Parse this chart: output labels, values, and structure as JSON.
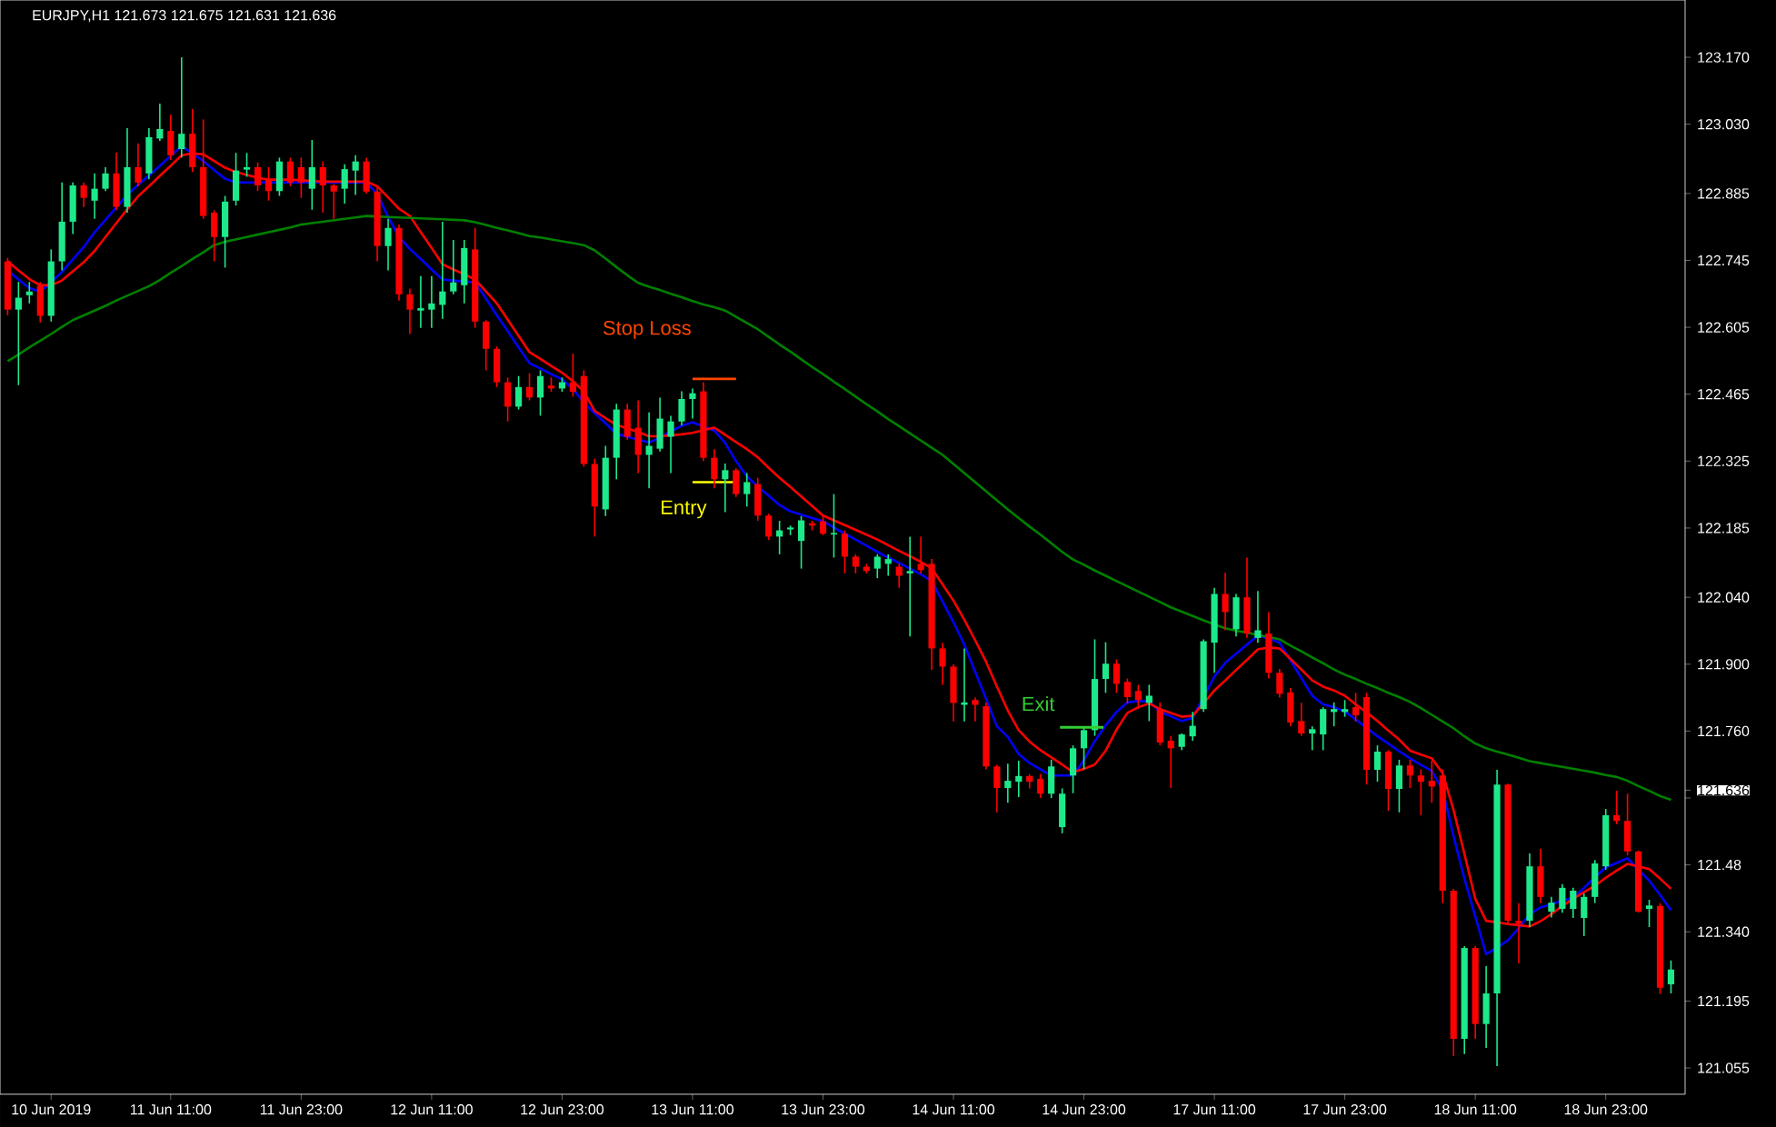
{
  "chart_data": {
    "type": "candlestick",
    "title": "EURJPY,H1  121.673 121.675 121.631 121.636",
    "categories": [
      null,
      null,
      null,
      null,
      "10 Jun 2019",
      null,
      null,
      null,
      null,
      null,
      null,
      null,
      null,
      null,
      null,
      "11 Jun 11:00",
      null,
      null,
      null,
      null,
      null,
      null,
      null,
      null,
      null,
      null,
      null,
      "11 Jun 23:00",
      null,
      null,
      null,
      null,
      null,
      null,
      null,
      null,
      null,
      null,
      null,
      "12 Jun 11:00",
      null,
      null,
      null,
      null,
      null,
      null,
      null,
      null,
      null,
      null,
      null,
      "12 Jun 23:00",
      null,
      null,
      null,
      null,
      null,
      null,
      null,
      null,
      null,
      null,
      null,
      "13 Jun 11:00",
      null,
      null,
      null,
      null,
      null,
      null,
      null,
      null,
      null,
      null,
      null,
      "13 Jun 23:00",
      null,
      null,
      null,
      null,
      null,
      null,
      null,
      null,
      null,
      null,
      null,
      "14 Jun 11:00",
      null,
      null,
      null,
      null,
      null,
      null,
      null,
      null,
      null,
      null,
      null,
      "14 Jun 23:00",
      null,
      null,
      null,
      null,
      null,
      null,
      null,
      null,
      null,
      null,
      null,
      "17 Jun 11:00",
      null,
      null,
      null,
      null,
      null,
      null,
      null,
      null,
      null,
      null,
      null,
      "17 Jun 23:00",
      null,
      null,
      null,
      null,
      null,
      null,
      null,
      null,
      null,
      null,
      null,
      "18 Jun 11:00",
      null,
      null,
      null,
      null,
      null,
      null,
      null,
      null,
      null,
      null,
      null,
      "18 Jun 23:00",
      null,
      null,
      null,
      null,
      null,
      null
    ],
    "colors": [
      "#ff0000",
      "#1de98b",
      "#1de98b",
      "#ff0000",
      "#1de98b",
      "#1de98b",
      "#1de98b",
      "#ff0000",
      "#1de98b",
      "#1de98b",
      "#ff0000",
      "#1de98b",
      "#ff0000",
      "#1de98b",
      "#1de98b",
      "#ff0000",
      "#1de98b",
      "#ff0000",
      "#ff0000",
      "#ff0000",
      "#1de98b",
      "#1de98b",
      "#1de98b",
      "#ff0000",
      "#ff0000",
      "#1de98b",
      "#ff0000",
      "#ff0000",
      "#1de98b",
      "#ff0000",
      "#ff0000",
      "#1de98b",
      "#1de98b",
      "#ff0000",
      "#ff0000",
      "#1de98b",
      "#ff0000",
      "#ff0000",
      "#1de98b",
      "#1de98b",
      "#1de98b",
      "#1de98b",
      "#1de98b",
      "#ff0000",
      "#ff0000",
      "#ff0000",
      "#ff0000",
      "#1de98b",
      "#ff0000",
      "#1de98b",
      "#ff0000",
      "#1de98b",
      "#ff0000",
      "#ff0000",
      "#ff0000",
      "#1de98b",
      "#1de98b",
      "#ff0000",
      "#ff0000",
      "#1de98b",
      "#1de98b",
      "#1de98b",
      "#1de98b",
      "#1de98b",
      "#ff0000",
      "#ff0000",
      "#1de98b",
      "#ff0000",
      "#1de98b",
      "#ff0000",
      "#ff0000",
      "#1de98b",
      "#1de98b",
      "#1de98b",
      "#ff0000",
      "#ff0000",
      "#1de98b",
      "#ff0000",
      "#ff0000",
      "#ff0000",
      "#1de98b",
      "#1de98b",
      "#ff0000",
      "#1de98b",
      "#ff0000",
      "#ff0000",
      "#ff0000",
      "#ff0000",
      "#1de98b",
      "#ff0000",
      "#ff0000",
      "#ff0000",
      "#1de98b",
      "#1de98b",
      "#ff0000",
      "#ff0000",
      "#1de98b",
      "#1de98b",
      "#1de98b",
      "#1de98b",
      "#1de98b",
      "#1de98b",
      "#ff0000",
      "#ff0000",
      "#ff0000",
      "#1de98b",
      "#ff0000",
      "#ff0000",
      "#1de98b",
      "#1de98b",
      "#1de98b",
      "#1de98b",
      "#ff0000",
      "#1de98b",
      "#ff0000",
      "#1de98b",
      "#ff0000",
      "#ff0000",
      "#ff0000",
      "#ff0000",
      "#1de98b",
      "#1de98b",
      "#1de98b",
      "#1de98b",
      "#ff0000",
      "#ff0000",
      "#1de98b",
      "#ff0000",
      "#1de98b",
      "#ff0000",
      "#ff0000",
      "#ff0000",
      "#ff0000",
      "#ff0000",
      "#1de98b",
      "#ff0000",
      "#1de98b",
      "#1de98b",
      "#ff0000",
      "#ff0000",
      "#1de98b",
      "#ff0000",
      "#1de98b",
      "#1de98b",
      "#1de98b",
      "#1de98b",
      "#1de98b",
      "#1de98b",
      "#ff0000",
      "#ff0000",
      "#ff0000",
      "#1de98b",
      "#ff0000",
      "#1de98b"
    ],
    "ohlc": [
      [
        122.743,
        122.75,
        122.63,
        122.642
      ],
      [
        122.642,
        122.7,
        122.484,
        122.667
      ],
      [
        122.672,
        122.7,
        122.655,
        122.68
      ],
      [
        122.692,
        122.7,
        122.615,
        122.629
      ],
      [
        122.629,
        122.768,
        122.617,
        122.743
      ],
      [
        122.743,
        122.908,
        122.724,
        122.826
      ],
      [
        122.826,
        122.908,
        122.8,
        122.902
      ],
      [
        122.902,
        122.908,
        122.857,
        122.876
      ],
      [
        122.87,
        122.927,
        122.832,
        122.895
      ],
      [
        122.895,
        122.94,
        122.89,
        122.927
      ],
      [
        122.927,
        122.971,
        122.85,
        122.857
      ],
      [
        122.857,
        123.022,
        122.845,
        122.94
      ],
      [
        122.94,
        122.99,
        122.9,
        122.908
      ],
      [
        122.927,
        123.022,
        122.915,
        123.003
      ],
      [
        123.0,
        123.073,
        122.995,
        123.02
      ],
      [
        123.016,
        123.05,
        122.955,
        122.965
      ],
      [
        122.978,
        123.17,
        122.96,
        123.01
      ],
      [
        123.01,
        123.062,
        122.93,
        122.94
      ],
      [
        122.94,
        123.04,
        122.832,
        122.838
      ],
      [
        122.845,
        122.85,
        122.743,
        122.794
      ],
      [
        122.794,
        122.88,
        122.73,
        122.868
      ],
      [
        122.87,
        122.97,
        122.86,
        122.933
      ],
      [
        122.935,
        122.97,
        122.92,
        122.94
      ],
      [
        122.94,
        122.95,
        122.89,
        122.902
      ],
      [
        122.915,
        122.94,
        122.87,
        122.89
      ],
      [
        122.89,
        122.96,
        122.88,
        122.952
      ],
      [
        122.952,
        122.96,
        122.9,
        122.908
      ],
      [
        122.94,
        122.96,
        122.876,
        122.908
      ],
      [
        122.895,
        122.997,
        122.851,
        122.94
      ],
      [
        122.94,
        122.952,
        122.845,
        122.902
      ],
      [
        122.902,
        122.905,
        122.832,
        122.889
      ],
      [
        122.895,
        122.946,
        122.864,
        122.936
      ],
      [
        122.933,
        122.965,
        122.882,
        122.952
      ],
      [
        122.952,
        122.96,
        122.885,
        122.889
      ],
      [
        122.889,
        122.9,
        122.743,
        122.775
      ],
      [
        122.775,
        122.832,
        122.724,
        122.813
      ],
      [
        122.813,
        122.82,
        122.661,
        122.674
      ],
      [
        122.674,
        122.686,
        122.591,
        122.642
      ],
      [
        122.64,
        122.712,
        122.604,
        122.645
      ],
      [
        122.642,
        122.712,
        122.604,
        122.655
      ],
      [
        122.652,
        122.826,
        122.623,
        122.68
      ],
      [
        122.68,
        122.788,
        122.674,
        122.699
      ],
      [
        122.693,
        122.788,
        122.655,
        122.771
      ],
      [
        122.768,
        122.813,
        122.604,
        122.617
      ],
      [
        122.617,
        122.62,
        122.515,
        122.56
      ],
      [
        122.56,
        122.565,
        122.48,
        122.49
      ],
      [
        122.49,
        122.5,
        122.408,
        122.439
      ],
      [
        122.439,
        122.503,
        122.433,
        122.48
      ],
      [
        122.48,
        122.509,
        122.452,
        122.458
      ],
      [
        122.458,
        122.515,
        122.42,
        122.503
      ],
      [
        122.483,
        122.5,
        122.47,
        122.477
      ],
      [
        122.477,
        122.5,
        122.47,
        122.49
      ],
      [
        122.49,
        122.55,
        122.46,
        122.47
      ],
      [
        122.503,
        122.515,
        122.313,
        122.319
      ],
      [
        122.319,
        122.33,
        122.167,
        122.23
      ],
      [
        122.224,
        122.357,
        122.21,
        122.332
      ],
      [
        122.332,
        122.445,
        122.287,
        122.433
      ],
      [
        122.433,
        122.445,
        122.37,
        122.376
      ],
      [
        122.395,
        122.452,
        122.3,
        122.338
      ],
      [
        122.338,
        122.427,
        122.268,
        122.357
      ],
      [
        122.351,
        122.458,
        122.345,
        122.414
      ],
      [
        122.376,
        122.42,
        122.3,
        122.408
      ],
      [
        122.408,
        122.471,
        122.4,
        122.455
      ],
      [
        122.455,
        122.477,
        122.414,
        122.467
      ],
      [
        122.471,
        122.49,
        122.325,
        122.332
      ],
      [
        122.332,
        122.35,
        122.268,
        122.287
      ],
      [
        122.287,
        122.32,
        122.218,
        122.306
      ],
      [
        122.306,
        122.31,
        122.25,
        122.256
      ],
      [
        122.256,
        122.3,
        122.23,
        122.281
      ],
      [
        122.277,
        122.29,
        122.2,
        122.211
      ],
      [
        122.211,
        122.215,
        122.16,
        122.167
      ],
      [
        122.167,
        122.2,
        122.13,
        122.18
      ],
      [
        122.182,
        122.19,
        122.17,
        122.186
      ],
      [
        122.158,
        122.21,
        122.1,
        122.201
      ],
      [
        122.195,
        122.2,
        122.18,
        122.19
      ],
      [
        122.199,
        122.21,
        122.17,
        122.173
      ],
      [
        122.173,
        122.256,
        122.123,
        122.173
      ],
      [
        122.173,
        122.18,
        122.09,
        122.125
      ],
      [
        122.125,
        122.13,
        122.09,
        122.104
      ],
      [
        122.104,
        122.11,
        122.09,
        122.095
      ],
      [
        122.1,
        122.13,
        122.08,
        122.125
      ],
      [
        122.11,
        122.13,
        122.085,
        122.12
      ],
      [
        122.104,
        122.11,
        122.06,
        122.085
      ],
      [
        122.09,
        122.167,
        121.958,
        122.095
      ],
      [
        122.11,
        122.167,
        122.09,
        122.097
      ],
      [
        122.11,
        122.12,
        121.888,
        121.933
      ],
      [
        121.933,
        121.945,
        121.857,
        121.895
      ],
      [
        121.895,
        121.9,
        121.78,
        121.819
      ],
      [
        121.815,
        121.933,
        121.78,
        121.82
      ],
      [
        121.825,
        121.83,
        121.78,
        121.815
      ],
      [
        121.812,
        121.82,
        121.68,
        121.686
      ],
      [
        121.686,
        121.69,
        121.59,
        121.641
      ],
      [
        121.641,
        121.692,
        121.61,
        121.656
      ],
      [
        121.654,
        121.698,
        121.622,
        121.666
      ],
      [
        121.666,
        121.67,
        121.64,
        121.654
      ],
      [
        121.66,
        121.67,
        121.62,
        121.629
      ],
      [
        121.629,
        121.7,
        121.62,
        121.686
      ],
      [
        121.559,
        121.64,
        121.546,
        121.629
      ],
      [
        121.667,
        121.73,
        121.63,
        121.724
      ],
      [
        121.724,
        121.77,
        121.68,
        121.762
      ],
      [
        121.762,
        121.952,
        121.75,
        121.869
      ],
      [
        121.869,
        121.946,
        121.84,
        121.901
      ],
      [
        121.901,
        121.91,
        121.84,
        121.859
      ],
      [
        121.863,
        121.87,
        121.818,
        121.831
      ],
      [
        121.844,
        121.857,
        121.806,
        121.825
      ],
      [
        121.819,
        121.857,
        121.781,
        121.834
      ],
      [
        121.806,
        121.82,
        121.73,
        121.736
      ],
      [
        121.74,
        121.75,
        121.641,
        121.724
      ],
      [
        121.727,
        121.755,
        121.72,
        121.753
      ],
      [
        121.749,
        121.8,
        121.74,
        121.771
      ],
      [
        121.806,
        121.952,
        121.8,
        121.948
      ],
      [
        121.945,
        122.06,
        121.882,
        122.047
      ],
      [
        122.047,
        122.091,
        121.971,
        122.009
      ],
      [
        121.973,
        122.047,
        121.958,
        122.04
      ],
      [
        122.04,
        122.123,
        121.955,
        121.964
      ],
      [
        121.955,
        122.053,
        121.945,
        121.971
      ],
      [
        121.964,
        122.009,
        121.87,
        121.882
      ],
      [
        121.882,
        121.89,
        121.83,
        121.838
      ],
      [
        121.841,
        121.85,
        121.77,
        121.778
      ],
      [
        121.781,
        121.819,
        121.75,
        121.755
      ],
      [
        121.755,
        121.77,
        121.72,
        121.764
      ],
      [
        121.753,
        121.81,
        121.72,
        121.806
      ],
      [
        121.8,
        121.82,
        121.77,
        121.806
      ],
      [
        121.8,
        121.825,
        121.79,
        121.806
      ],
      [
        121.81,
        121.84,
        121.78,
        121.793
      ],
      [
        121.831,
        121.84,
        121.648,
        121.679
      ],
      [
        121.679,
        121.73,
        121.654,
        121.717
      ],
      [
        121.717,
        121.72,
        121.593,
        121.639
      ],
      [
        121.639,
        121.7,
        121.59,
        121.688
      ],
      [
        121.688,
        121.7,
        121.641,
        121.667
      ],
      [
        121.667,
        121.68,
        121.584,
        121.654
      ],
      [
        121.656,
        121.698,
        121.61,
        121.644
      ],
      [
        121.667,
        121.68,
        121.4,
        121.426
      ],
      [
        121.426,
        121.43,
        121.08,
        121.116
      ],
      [
        121.116,
        121.31,
        121.084,
        121.306
      ],
      [
        121.306,
        121.31,
        121.116,
        121.147
      ],
      [
        121.147,
        121.268,
        121.097,
        121.211
      ],
      [
        121.211,
        121.679,
        121.059,
        121.648
      ],
      [
        121.648,
        121.65,
        121.356,
        121.363
      ],
      [
        121.363,
        121.4,
        121.274,
        121.357
      ],
      [
        121.363,
        121.504,
        121.35,
        121.477
      ],
      [
        121.477,
        121.514,
        121.4,
        121.413
      ],
      [
        121.382,
        121.413,
        121.37,
        121.401
      ],
      [
        121.388,
        121.44,
        121.38,
        121.432
      ],
      [
        121.388,
        121.432,
        121.369,
        121.426
      ],
      [
        121.369,
        121.42,
        121.331,
        121.413
      ],
      [
        121.413,
        121.49,
        121.4,
        121.483
      ],
      [
        121.477,
        121.597,
        121.47,
        121.584
      ],
      [
        121.584,
        121.635,
        121.565,
        121.572
      ],
      [
        121.572,
        121.629,
        121.5,
        121.508
      ],
      [
        121.508,
        121.51,
        121.38,
        121.382
      ],
      [
        121.388,
        121.407,
        121.35,
        121.395
      ],
      [
        121.394,
        121.4,
        121.21,
        121.223
      ],
      [
        121.23,
        121.28,
        121.211,
        121.261
      ]
    ],
    "series": [
      {
        "type": "line",
        "color": "#0000ff",
        "values": [
          122.724,
          122.705,
          122.687,
          122.68,
          122.699,
          122.721,
          122.747,
          122.773,
          122.804,
          122.83,
          122.856,
          122.882,
          122.903,
          122.923,
          122.943,
          122.964,
          122.984,
          122.969,
          122.953,
          122.934,
          122.916,
          122.908,
          122.908,
          122.908,
          122.908,
          122.908,
          122.908,
          122.908,
          122.908,
          122.908,
          122.908,
          122.908,
          122.908,
          122.908,
          122.884,
          122.836,
          122.794,
          122.769,
          122.748,
          122.726,
          122.705,
          122.703,
          122.701,
          122.699,
          122.665,
          122.63,
          122.597,
          122.563,
          122.53,
          122.519,
          122.507,
          122.496,
          122.476,
          122.448,
          122.425,
          122.404,
          122.382,
          122.376,
          122.37,
          122.364,
          122.374,
          122.387,
          122.399,
          122.406,
          122.398,
          122.389,
          122.363,
          122.325,
          122.293,
          122.272,
          122.253,
          122.233,
          122.22,
          122.213,
          122.206,
          122.199,
          122.186,
          122.173,
          122.161,
          122.148,
          122.135,
          122.123,
          122.112,
          122.1,
          122.088,
          122.074,
          122.031,
          121.988,
          121.941,
          121.884,
          121.828,
          121.77,
          121.748,
          121.712,
          121.693,
          121.68,
          121.667,
          121.667,
          121.667,
          121.699,
          121.739,
          121.772,
          121.8,
          121.82,
          121.823,
          121.822,
          121.8,
          121.791,
          121.781,
          121.788,
          121.831,
          121.874,
          121.903,
          121.922,
          121.941,
          121.96,
          121.954,
          121.945,
          121.908,
          121.871,
          121.834,
          121.816,
          121.81,
          121.801,
          121.784,
          121.767,
          121.749,
          121.734,
          121.718,
          121.703,
          121.689,
          121.677,
          121.637,
          121.54,
          121.451,
          121.372,
          121.293,
          121.307,
          121.322,
          121.348,
          121.377,
          121.391,
          121.398,
          121.405,
          121.411,
          121.432,
          121.454,
          121.475,
          121.484,
          121.494,
          121.47,
          121.447,
          121.417,
          121.385
        ]
      },
      {
        "type": "line",
        "color": "#ff0000",
        "values": [
          122.743,
          122.724,
          122.706,
          122.693,
          122.693,
          122.703,
          122.722,
          122.741,
          122.765,
          122.794,
          122.823,
          122.852,
          122.879,
          122.9,
          122.922,
          122.943,
          122.965,
          122.969,
          122.967,
          122.953,
          122.939,
          122.93,
          122.924,
          122.918,
          122.914,
          122.914,
          122.914,
          122.913,
          122.911,
          122.91,
          122.91,
          122.91,
          122.91,
          122.91,
          122.9,
          122.877,
          122.853,
          122.838,
          122.804,
          122.771,
          122.737,
          122.726,
          122.716,
          122.705,
          122.68,
          122.655,
          122.621,
          122.587,
          122.553,
          122.539,
          122.524,
          122.51,
          122.492,
          122.471,
          122.43,
          122.415,
          122.401,
          122.393,
          122.386,
          122.377,
          122.377,
          122.379,
          122.381,
          122.384,
          122.39,
          122.395,
          122.38,
          122.365,
          122.35,
          122.333,
          122.311,
          122.29,
          122.271,
          122.251,
          122.231,
          122.211,
          122.201,
          122.191,
          122.181,
          122.171,
          122.161,
          122.149,
          122.137,
          122.126,
          122.114,
          122.101,
          122.067,
          122.033,
          121.993,
          121.95,
          121.905,
          121.853,
          121.803,
          121.762,
          121.738,
          121.72,
          121.705,
          121.69,
          121.674,
          121.681,
          121.69,
          121.719,
          121.763,
          121.798,
          121.81,
          121.818,
          121.806,
          121.798,
          121.79,
          121.792,
          121.818,
          121.845,
          121.866,
          121.888,
          121.909,
          121.931,
          121.935,
          121.933,
          121.911,
          121.889,
          121.866,
          121.853,
          121.845,
          121.834,
          121.816,
          121.799,
          121.781,
          121.761,
          121.742,
          121.719,
          121.711,
          121.703,
          121.672,
          121.595,
          121.503,
          121.409,
          121.363,
          121.36,
          121.356,
          121.354,
          121.351,
          121.362,
          121.377,
          121.394,
          121.409,
          121.423,
          121.436,
          121.453,
          121.468,
          121.482,
          121.477,
          121.471,
          121.451,
          121.43
        ]
      },
      {
        "type": "line",
        "color": "#008000",
        "values": [
          122.534,
          122.548,
          122.563,
          122.577,
          122.591,
          122.606,
          122.62,
          122.63,
          122.64,
          122.65,
          122.661,
          122.671,
          122.681,
          122.691,
          122.704,
          122.719,
          122.733,
          122.748,
          122.762,
          122.777,
          122.784,
          122.789,
          122.794,
          122.799,
          122.804,
          122.809,
          122.814,
          122.82,
          122.823,
          122.826,
          122.829,
          122.832,
          122.835,
          122.838,
          122.837,
          122.836,
          122.835,
          122.834,
          122.833,
          122.832,
          122.831,
          122.83,
          122.829,
          122.825,
          122.819,
          122.813,
          122.808,
          122.802,
          122.796,
          122.793,
          122.789,
          122.785,
          122.781,
          122.777,
          122.766,
          122.749,
          122.731,
          122.714,
          122.698,
          122.69,
          122.683,
          122.675,
          122.668,
          122.66,
          122.653,
          122.647,
          122.64,
          122.627,
          122.614,
          122.601,
          122.585,
          122.569,
          122.554,
          122.538,
          122.522,
          122.507,
          122.491,
          122.476,
          122.46,
          122.444,
          122.429,
          122.413,
          122.398,
          122.383,
          122.368,
          122.353,
          122.338,
          122.319,
          122.3,
          122.281,
          122.262,
          122.243,
          122.224,
          122.206,
          122.188,
          122.171,
          122.153,
          122.135,
          122.119,
          122.108,
          122.096,
          122.085,
          122.074,
          122.063,
          122.052,
          122.041,
          122.03,
          122.019,
          122.01,
          122.001,
          121.992,
          121.983,
          121.975,
          121.97,
          121.966,
          121.961,
          121.957,
          121.952,
          121.939,
          121.927,
          121.914,
          121.902,
          121.889,
          121.878,
          121.869,
          121.859,
          121.85,
          121.84,
          121.831,
          121.821,
          121.808,
          121.794,
          121.78,
          121.766,
          121.749,
          121.734,
          121.724,
          121.717,
          121.711,
          121.704,
          121.697,
          121.693,
          121.689,
          121.685,
          121.681,
          121.677,
          121.673,
          121.668,
          121.664,
          121.656,
          121.645,
          121.635,
          121.624,
          121.616
        ]
      },
      {
        "type": "line",
        "name": "Stop Loss",
        "color": "#ff4500",
        "values": [
          null,
          null,
          null,
          null,
          null,
          null,
          null,
          null,
          null,
          null,
          null,
          null,
          null,
          null,
          null,
          null,
          null,
          null,
          null,
          null,
          null,
          null,
          null,
          null,
          null,
          null,
          null,
          null,
          null,
          null,
          null,
          null,
          null,
          null,
          null,
          null,
          null,
          null,
          null,
          null,
          null,
          null,
          null,
          null,
          null,
          null,
          null,
          null,
          null,
          null,
          null,
          null,
          null,
          null,
          null,
          null,
          null,
          null,
          null,
          null,
          null,
          null,
          null,
          122.497,
          122.497,
          122.497,
          122.497,
          122.497,
          null,
          null,
          null,
          null,
          null,
          null,
          null,
          null,
          null,
          null,
          null,
          null,
          null,
          null,
          null,
          null,
          null,
          null,
          null,
          null,
          null,
          null,
          null,
          null,
          null,
          null,
          null,
          null,
          null,
          null,
          null,
          null,
          null,
          null,
          null,
          null,
          null,
          null,
          null,
          null,
          null,
          null,
          null,
          null,
          null,
          null,
          null,
          null,
          null,
          null,
          null,
          null,
          null,
          null,
          null,
          null,
          null,
          null,
          null,
          null,
          null,
          null,
          null,
          null,
          null,
          null,
          null,
          null,
          null,
          null,
          null,
          null,
          null,
          null,
          null,
          null,
          null,
          null,
          null,
          null,
          null,
          null,
          null,
          null,
          null,
          null
        ]
      },
      {
        "type": "line",
        "name": "Entry",
        "color": "#ffff00",
        "values": [
          null,
          null,
          null,
          null,
          null,
          null,
          null,
          null,
          null,
          null,
          null,
          null,
          null,
          null,
          null,
          null,
          null,
          null,
          null,
          null,
          null,
          null,
          null,
          null,
          null,
          null,
          null,
          null,
          null,
          null,
          null,
          null,
          null,
          null,
          null,
          null,
          null,
          null,
          null,
          null,
          null,
          null,
          null,
          null,
          null,
          null,
          null,
          null,
          null,
          null,
          null,
          null,
          null,
          null,
          null,
          null,
          null,
          null,
          null,
          null,
          null,
          null,
          null,
          122.281,
          122.281,
          122.281,
          122.281,
          122.281,
          null,
          null,
          null,
          null,
          null,
          null,
          null,
          null,
          null,
          null,
          null,
          null,
          null,
          null,
          null,
          null,
          null,
          null,
          null,
          null,
          null,
          null,
          null,
          null,
          null,
          null,
          null,
          null,
          null,
          null,
          null,
          null,
          null,
          null,
          null,
          null,
          null,
          null,
          null,
          null,
          null,
          null,
          null,
          null,
          null,
          null,
          null,
          null,
          null,
          null,
          null,
          null,
          null,
          null,
          null,
          null,
          null,
          null,
          null,
          null,
          null,
          null,
          null,
          null,
          null,
          null,
          null,
          null,
          null,
          null,
          null,
          null,
          null,
          null,
          null,
          null,
          null,
          null,
          null,
          null,
          null,
          null,
          null,
          null,
          null,
          null
        ]
      }
    ],
    "ylim": [
      121.0,
      123.29
    ],
    "yticks": [
      121.055,
      121.195,
      {
        "value": 121.34,
        "label": "121.340"
      },
      121.48,
      {
        "value": 121.62,
        "label": null
      },
      121.636,
      {
        "value": 121.76,
        "label": "121.760"
      },
      {
        "value": 121.9,
        "label": "121.900"
      },
      {
        "value": 122.04,
        "label": "122.040"
      },
      122.185,
      122.325,
      122.465,
      122.605,
      122.745,
      122.885,
      {
        "value": 123.03,
        "label": "123.030"
      },
      {
        "value": 123.17,
        "label": "123.170"
      }
    ],
    "annotations": [
      {
        "text": "Exit",
        "x": "14 Jun 23:00",
        "y": 121.768
      }
    ]
  }
}
